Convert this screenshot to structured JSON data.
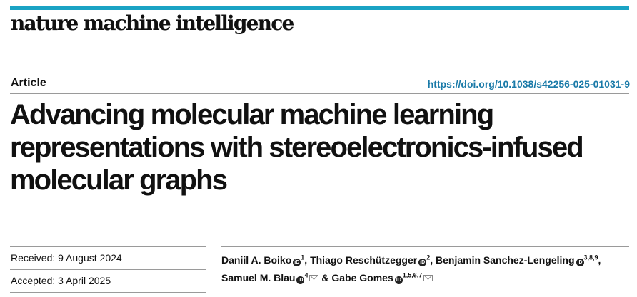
{
  "journal": "nature machine intelligence",
  "article_type": "Article",
  "doi": "https://doi.org/10.1038/s42256-025-01031-9",
  "title": "Advancing molecular machine learning representations with stereoelectronics-infused molecular graphs",
  "dates": [
    {
      "label": "Received:",
      "value": "9 August 2024"
    },
    {
      "label": "Accepted:",
      "value": "3 April 2025"
    }
  ],
  "authors": [
    {
      "name": "Daniil A. Boiko",
      "affil": "1",
      "sep": ", "
    },
    {
      "name": "Thiago Reschützegger",
      "affil": "2",
      "sep": ", "
    },
    {
      "name": "Benjamin Sanchez-Lengeling",
      "affil": "3,8,9",
      "sep": ","
    },
    {
      "name": "Samuel M. Blau",
      "affil": "4",
      "sep": " & "
    },
    {
      "name": "Gabe Gomes",
      "affil": "1,5,6,7",
      "sep": ""
    }
  ],
  "icons": {
    "orcid": "orcid-icon",
    "email": "mail-icon"
  },
  "colors": {
    "accent_bar": "#1aa3c4",
    "doi_link": "#1a7aa8"
  }
}
